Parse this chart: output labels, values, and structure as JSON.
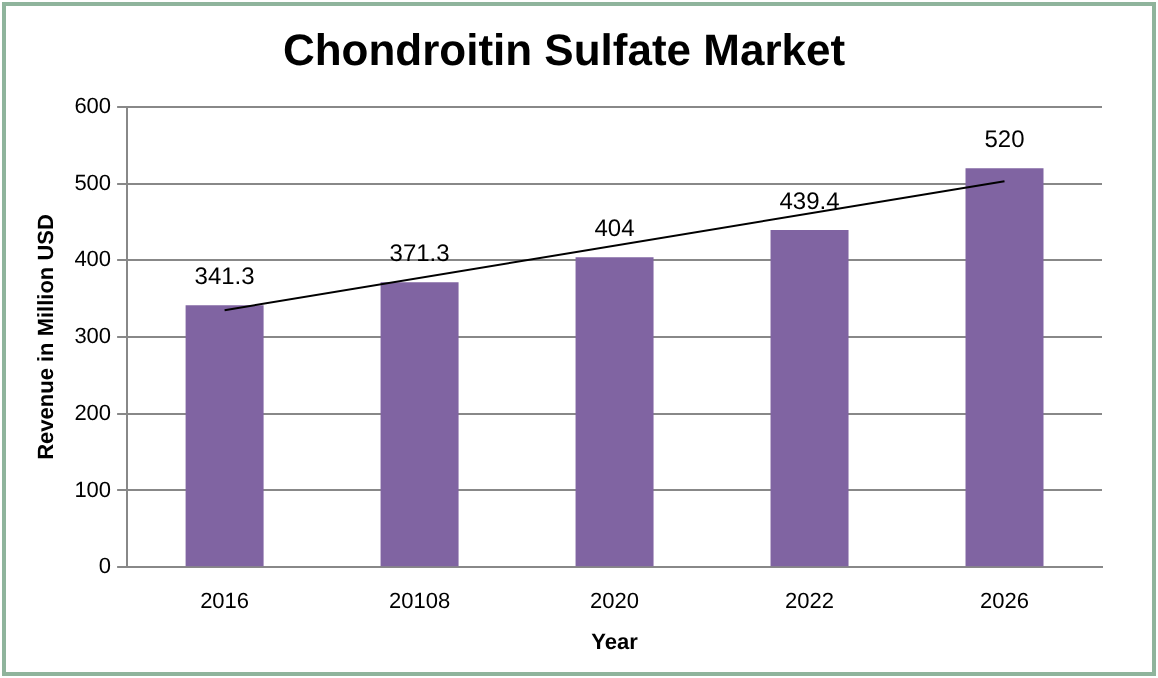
{
  "chart_data": {
    "type": "bar",
    "title": "Chondroitin Sulfate Market",
    "xlabel": "Year",
    "ylabel": "Revenue in Million USD",
    "categories": [
      "2016",
      "20108",
      "2020",
      "2022",
      "2026"
    ],
    "series": [
      {
        "color": "#8064a2",
        "values": [
          341.3,
          371.3,
          404,
          439.4,
          520
        ],
        "value_labels": [
          "341.3",
          "371.3",
          "404",
          "439.4",
          "520"
        ]
      },
      {
        "type": "line",
        "color": "#000000",
        "values": [
          335,
          null,
          null,
          null,
          503
        ]
      }
    ],
    "ylim": [
      0,
      600
    ],
    "yticks": [
      0,
      100,
      200,
      300,
      400,
      500,
      600
    ],
    "grid": "y",
    "legend": false
  }
}
